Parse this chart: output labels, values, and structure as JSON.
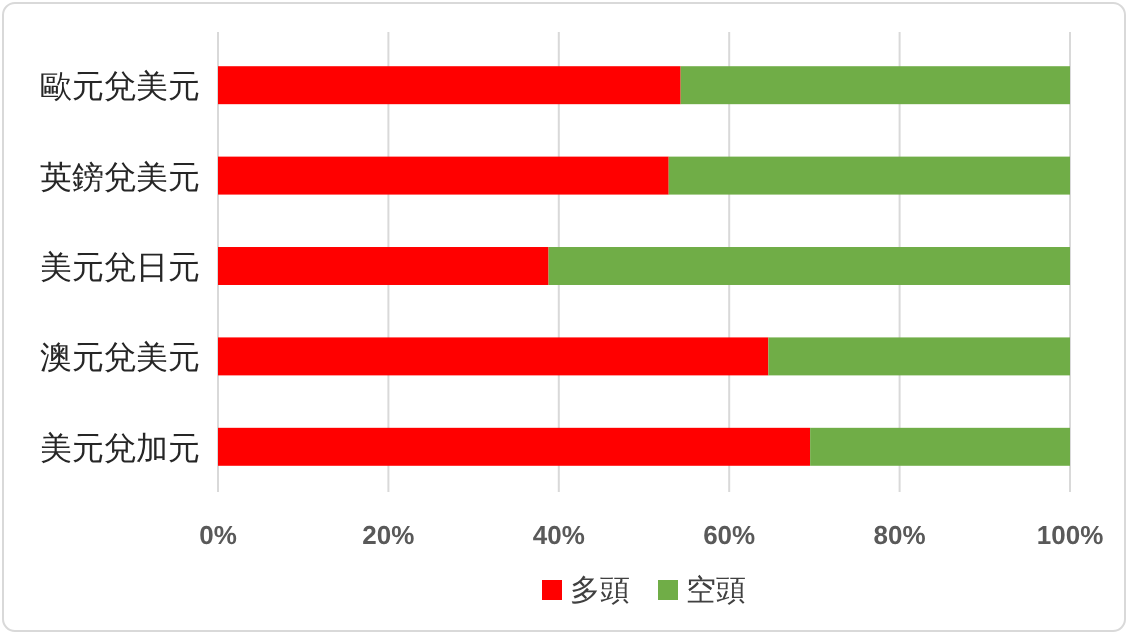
{
  "chart_data": {
    "type": "bar",
    "orientation": "horizontal",
    "stacked": true,
    "categories": [
      "歐元兌美元",
      "英鎊兌美元",
      "美元兌日元",
      "澳元兌美元",
      "美元兌加元"
    ],
    "series": [
      {
        "name": "多頭",
        "color": "#ff0000",
        "values": [
          54.3,
          52.9,
          38.8,
          64.6,
          69.5
        ]
      },
      {
        "name": "空頭",
        "color": "#70ad47",
        "values": [
          45.7,
          47.1,
          61.2,
          35.4,
          30.5
        ]
      }
    ],
    "xlim": [
      0,
      100
    ],
    "xticks": [
      {
        "value": 0,
        "label": "0%"
      },
      {
        "value": 20,
        "label": "20%"
      },
      {
        "value": 40,
        "label": "40%"
      },
      {
        "value": 60,
        "label": "60%"
      },
      {
        "value": 80,
        "label": "80%"
      },
      {
        "value": 100,
        "label": "100%"
      }
    ],
    "grid": "x",
    "legend": "bottom"
  }
}
